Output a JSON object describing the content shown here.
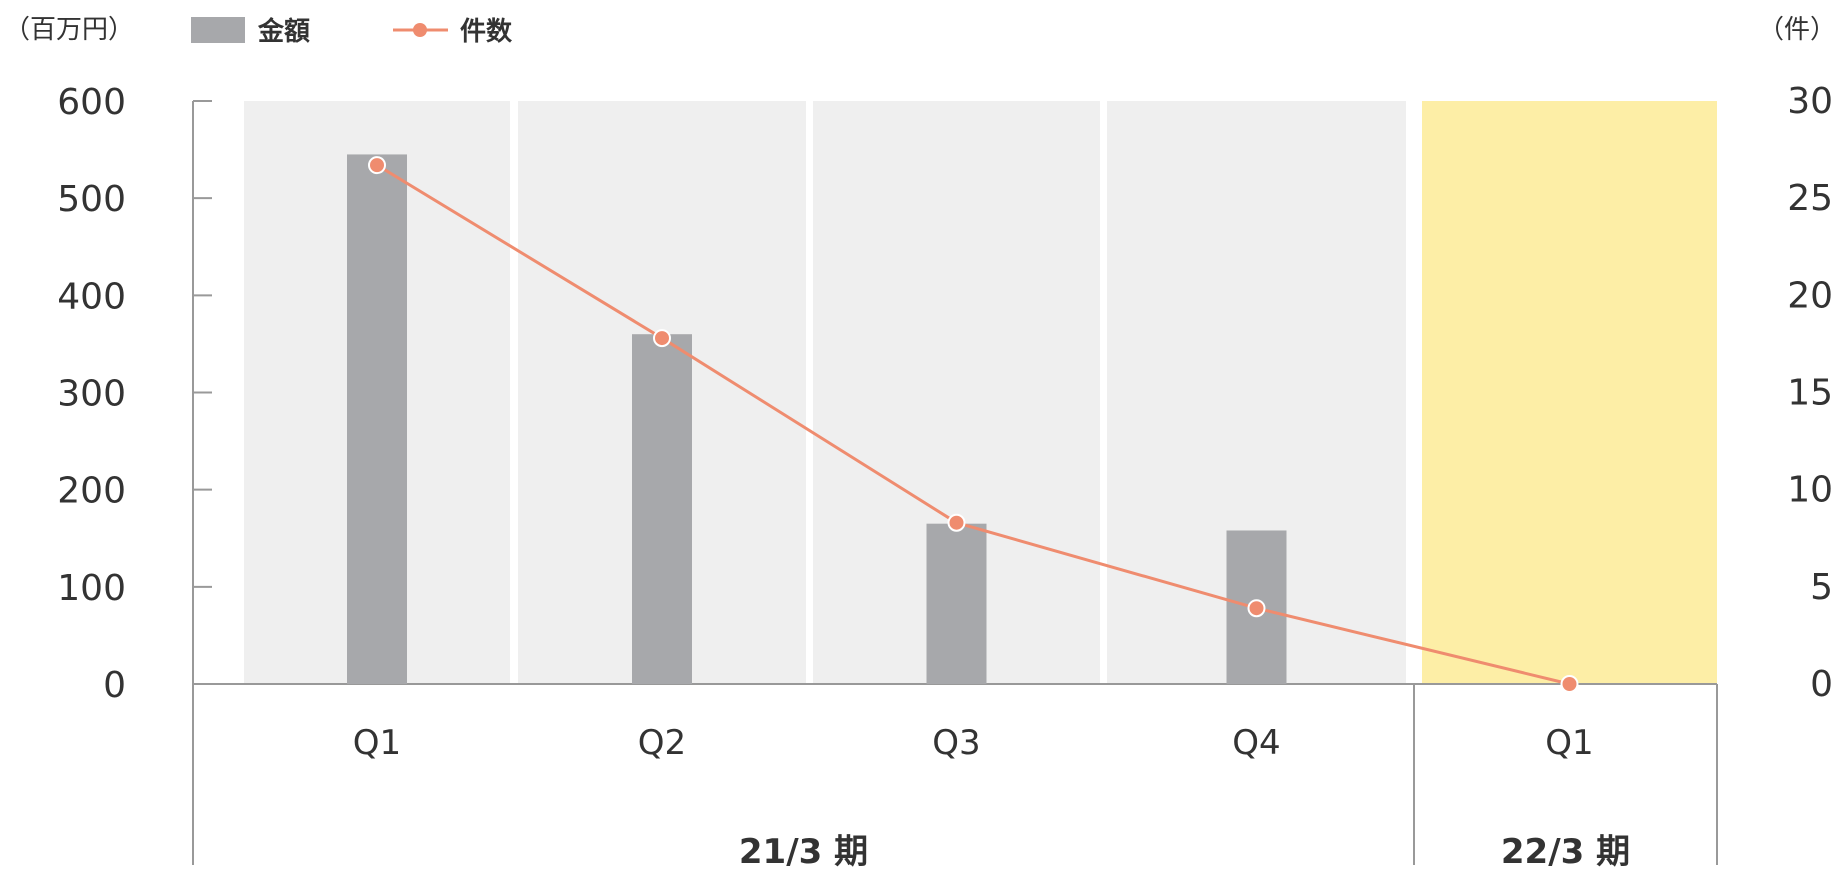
{
  "chart_data": {
    "type": "bar",
    "categories": [
      "Q1",
      "Q2",
      "Q3",
      "Q4",
      "Q1"
    ],
    "groups": [
      {
        "label": "21/3 期",
        "categories": [
          "Q1",
          "Q2",
          "Q3",
          "Q4"
        ]
      },
      {
        "label": "22/3 期",
        "categories": [
          "Q1"
        ]
      }
    ],
    "series": [
      {
        "name": "金額",
        "type": "bar",
        "axis": "left",
        "color": "#a7a8ab",
        "values": [
          545,
          360,
          165,
          158,
          0
        ]
      },
      {
        "name": "件数",
        "type": "line",
        "axis": "right",
        "color": "#ef8c6f",
        "values": [
          26.7,
          17.8,
          8.3,
          3.9,
          0
        ]
      }
    ],
    "y_left": {
      "unit_label": "（百万円）",
      "range": [
        0,
        600
      ],
      "ticks": [
        0,
        100,
        200,
        300,
        400,
        500,
        600
      ]
    },
    "y_right": {
      "unit_label": "（件）",
      "range": [
        0,
        30
      ],
      "ticks": [
        0,
        5,
        10,
        15,
        20,
        25,
        30
      ]
    },
    "band_colors": [
      "#efefef",
      "#efefef",
      "#efefef",
      "#efefef",
      "#fdeea6"
    ],
    "legend_position": "top-left"
  }
}
